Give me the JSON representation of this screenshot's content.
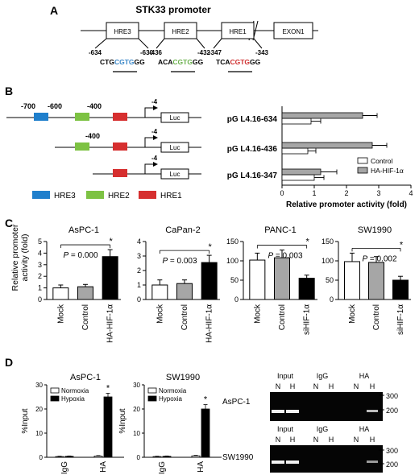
{
  "panel_a": {
    "letter": "A",
    "title": "STK33 promoter",
    "boxes": [
      "HRE3",
      "HRE2",
      "HRE1",
      "EXON1"
    ],
    "sites": [
      {
        "start": "-634",
        "end": "-630",
        "prefix": "CTG",
        "core": "CGTG",
        "suffix": "GG",
        "core_color": "#3a87c8"
      },
      {
        "start": "-436",
        "end": "-432",
        "prefix": "ACA",
        "core": "CGTG",
        "suffix": "GG",
        "core_color": "#6ab04c"
      },
      {
        "start": "-347",
        "end": "-343",
        "prefix": "TCA",
        "core": "CGTG",
        "suffix": "GG",
        "core_color": "#d03030"
      }
    ]
  },
  "panel_b": {
    "letter": "B",
    "positions": [
      "-700",
      "-600",
      "-400",
      "-4",
      "-400",
      "-4",
      "-4"
    ],
    "luc_label": "Luc",
    "legend": [
      {
        "label": "HRE3",
        "color": "#1f7fcc"
      },
      {
        "label": "HRE2",
        "color": "#7dc243"
      },
      {
        "label": "HRE1",
        "color": "#d62f2f"
      }
    ]
  },
  "panel_c": {
    "letter": "C",
    "ylabel": "Relative promoter\nactivity (fold)"
  },
  "panel_d": {
    "letter": "D",
    "gels": [
      {
        "cell": "AsPC-1",
        "groups": [
          "Input",
          "IgG",
          "HA"
        ],
        "lanes": [
          "N",
          "H",
          "N",
          "H",
          "N",
          "H"
        ],
        "markers": [
          "300",
          "200"
        ]
      },
      {
        "cell": "SW1990",
        "groups": [
          "Input",
          "IgG",
          "HA"
        ],
        "lanes": [
          "N",
          "H",
          "N",
          "H",
          "N",
          "H"
        ],
        "markers": [
          "300",
          "200"
        ]
      }
    ]
  },
  "chart_data": [
    {
      "type": "bar",
      "orientation": "horizontal",
      "panel": "B",
      "categories": [
        "pG L4.16-634",
        "pG L4.16-436",
        "pG L4.16-347"
      ],
      "series": [
        {
          "name": "Control",
          "values": [
            0.9,
            0.8,
            1.0
          ],
          "errors": [
            0.3,
            0.25,
            0.3
          ],
          "color": "#ffffff"
        },
        {
          "name": "HA-HIF-1α",
          "values": [
            2.5,
            2.8,
            1.2
          ],
          "errors": [
            0.45,
            0.45,
            0.5
          ],
          "color": "#a6a6a6"
        }
      ],
      "xlabel": "Relative promoter activity (fold)",
      "xlim": [
        0,
        4
      ],
      "xticks": [
        0,
        1,
        2,
        3,
        4
      ],
      "legend": "top-right"
    },
    {
      "type": "bar",
      "panel": "C",
      "title": "AsPC-1",
      "categories": [
        "Mock",
        "Control",
        "HA-HIF-1α"
      ],
      "values": [
        1.0,
        1.1,
        3.7
      ],
      "errors": [
        0.25,
        0.2,
        0.6
      ],
      "colors": [
        "#ffffff",
        "#a6a6a6",
        "#000000"
      ],
      "ylim": [
        0,
        5
      ],
      "yticks": [
        0,
        1,
        2,
        3,
        4,
        5
      ],
      "annotation": "P = 0.000",
      "star": "*"
    },
    {
      "type": "bar",
      "panel": "C",
      "title": "CaPan-2",
      "categories": [
        "Mock",
        "Control",
        "HA-HIF-1α"
      ],
      "values": [
        1.0,
        1.1,
        2.55
      ],
      "errors": [
        0.35,
        0.25,
        0.5
      ],
      "colors": [
        "#ffffff",
        "#a6a6a6",
        "#000000"
      ],
      "ylim": [
        0,
        4
      ],
      "yticks": [
        0,
        1,
        2,
        3,
        4
      ],
      "annotation": "P = 0.003",
      "star": "*"
    },
    {
      "type": "bar",
      "panel": "C",
      "title": "PANC-1",
      "categories": [
        "Mock",
        "Control",
        "siHIF-1α"
      ],
      "values": [
        102,
        108,
        55
      ],
      "errors": [
        18,
        20,
        8
      ],
      "colors": [
        "#ffffff",
        "#a6a6a6",
        "#000000"
      ],
      "ylim": [
        0,
        150
      ],
      "yticks": [
        0,
        50,
        100,
        150
      ],
      "annotation": "P = 0.003",
      "star": "*"
    },
    {
      "type": "bar",
      "panel": "C",
      "title": "SW1990",
      "categories": [
        "Mock",
        "Control",
        "siHIF-1α"
      ],
      "values": [
        98,
        96,
        50
      ],
      "errors": [
        22,
        15,
        10
      ],
      "colors": [
        "#ffffff",
        "#a6a6a6",
        "#000000"
      ],
      "ylim": [
        0,
        150
      ],
      "yticks": [
        0,
        50,
        100,
        150
      ],
      "annotation": "P = 0.002",
      "star": "*"
    },
    {
      "type": "bar",
      "panel": "D",
      "title": "AsPC-1",
      "categories": [
        "IgG",
        "HA"
      ],
      "series": [
        {
          "name": "Normoxia",
          "values": [
            0.3,
            0.5
          ],
          "errors": [
            0.15,
            0.2
          ],
          "color": "#ffffff"
        },
        {
          "name": "Hypoxia",
          "values": [
            0.4,
            25
          ],
          "errors": [
            0.15,
            1.5
          ],
          "color": "#000000"
        }
      ],
      "ylabel": "%Input",
      "ylim": [
        0,
        30
      ],
      "yticks": [
        0,
        10,
        20,
        30
      ],
      "legend": "top-left",
      "star": "*"
    },
    {
      "type": "bar",
      "panel": "D",
      "title": "SW1990",
      "categories": [
        "IgG",
        "HA"
      ],
      "series": [
        {
          "name": "Normoxia",
          "values": [
            0.3,
            0.6
          ],
          "errors": [
            0.15,
            0.2
          ],
          "color": "#ffffff"
        },
        {
          "name": "Hypoxia",
          "values": [
            0.4,
            20
          ],
          "errors": [
            0.15,
            1.8
          ],
          "color": "#000000"
        }
      ],
      "ylabel": "%Input",
      "ylim": [
        0,
        30
      ],
      "yticks": [
        0,
        10,
        20,
        30
      ],
      "legend": "top-left",
      "star": "*"
    }
  ]
}
